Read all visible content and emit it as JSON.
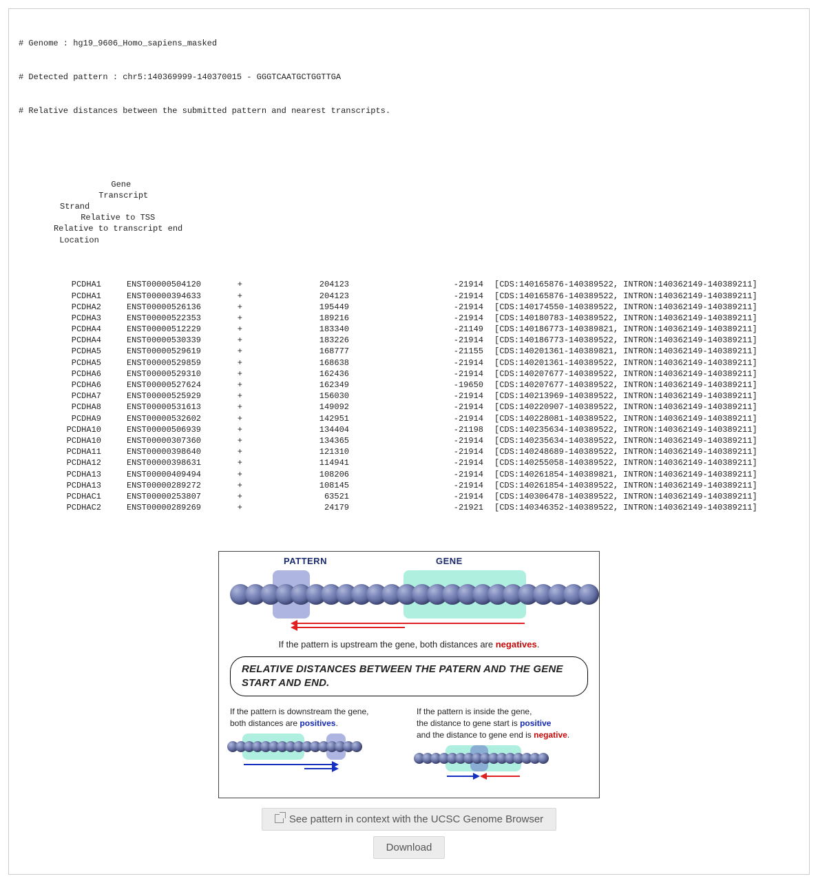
{
  "header": {
    "genome_line": "# Genome : hg19_9606_Homo_sapiens_masked",
    "pattern_line": "# Detected pattern : chr5:140369999-140370015 - GGGTCAATGCTGGTTGA",
    "distance_line": "# Relative distances between the submitted pattern and nearest transcripts."
  },
  "columns": {
    "gene": "Gene",
    "transcript": "Transcript",
    "strand": "Strand",
    "tss": "Relative to TSS",
    "end": "Relative to transcript end",
    "location": "Location"
  },
  "rows": [
    {
      "gene": "PCDHA1",
      "transcript": "ENST00000504120",
      "strand": "+",
      "tss": "204123",
      "end": "-21914",
      "location": "[CDS:140165876-140389522, INTRON:140362149-140389211]"
    },
    {
      "gene": "PCDHA1",
      "transcript": "ENST00000394633",
      "strand": "+",
      "tss": "204123",
      "end": "-21914",
      "location": "[CDS:140165876-140389522, INTRON:140362149-140389211]"
    },
    {
      "gene": "PCDHA2",
      "transcript": "ENST00000526136",
      "strand": "+",
      "tss": "195449",
      "end": "-21914",
      "location": "[CDS:140174550-140389522, INTRON:140362149-140389211]"
    },
    {
      "gene": "PCDHA3",
      "transcript": "ENST00000522353",
      "strand": "+",
      "tss": "189216",
      "end": "-21914",
      "location": "[CDS:140180783-140389522, INTRON:140362149-140389211]"
    },
    {
      "gene": "PCDHA4",
      "transcript": "ENST00000512229",
      "strand": "+",
      "tss": "183340",
      "end": "-21149",
      "location": "[CDS:140186773-140389821, INTRON:140362149-140389211]"
    },
    {
      "gene": "PCDHA4",
      "transcript": "ENST00000530339",
      "strand": "+",
      "tss": "183226",
      "end": "-21914",
      "location": "[CDS:140186773-140389522, INTRON:140362149-140389211]"
    },
    {
      "gene": "PCDHA5",
      "transcript": "ENST00000529619",
      "strand": "+",
      "tss": "168777",
      "end": "-21155",
      "location": "[CDS:140201361-140389821, INTRON:140362149-140389211]"
    },
    {
      "gene": "PCDHA5",
      "transcript": "ENST00000529859",
      "strand": "+",
      "tss": "168638",
      "end": "-21914",
      "location": "[CDS:140201361-140389522, INTRON:140362149-140389211]"
    },
    {
      "gene": "PCDHA6",
      "transcript": "ENST00000529310",
      "strand": "+",
      "tss": "162436",
      "end": "-21914",
      "location": "[CDS:140207677-140389522, INTRON:140362149-140389211]"
    },
    {
      "gene": "PCDHA6",
      "transcript": "ENST00000527624",
      "strand": "+",
      "tss": "162349",
      "end": "-19650",
      "location": "[CDS:140207677-140389522, INTRON:140362149-140389211]"
    },
    {
      "gene": "PCDHA7",
      "transcript": "ENST00000525929",
      "strand": "+",
      "tss": "156030",
      "end": "-21914",
      "location": "[CDS:140213969-140389522, INTRON:140362149-140389211]"
    },
    {
      "gene": "PCDHA8",
      "transcript": "ENST00000531613",
      "strand": "+",
      "tss": "149092",
      "end": "-21914",
      "location": "[CDS:140220907-140389522, INTRON:140362149-140389211]"
    },
    {
      "gene": "PCDHA9",
      "transcript": "ENST00000532602",
      "strand": "+",
      "tss": "142951",
      "end": "-21914",
      "location": "[CDS:140228081-140389522, INTRON:140362149-140389211]"
    },
    {
      "gene": "PCDHA10",
      "transcript": "ENST00000506939",
      "strand": "+",
      "tss": "134404",
      "end": "-21198",
      "location": "[CDS:140235634-140389522, INTRON:140362149-140389211]"
    },
    {
      "gene": "PCDHA10",
      "transcript": "ENST00000307360",
      "strand": "+",
      "tss": "134365",
      "end": "-21914",
      "location": "[CDS:140235634-140389522, INTRON:140362149-140389211]"
    },
    {
      "gene": "PCDHA11",
      "transcript": "ENST00000398640",
      "strand": "+",
      "tss": "121310",
      "end": "-21914",
      "location": "[CDS:140248689-140389522, INTRON:140362149-140389211]"
    },
    {
      "gene": "PCDHA12",
      "transcript": "ENST00000398631",
      "strand": "+",
      "tss": "114941",
      "end": "-21914",
      "location": "[CDS:140255058-140389522, INTRON:140362149-140389211]"
    },
    {
      "gene": "PCDHA13",
      "transcript": "ENST00000409494",
      "strand": "+",
      "tss": "108206",
      "end": "-21914",
      "location": "[CDS:140261854-140389821, INTRON:140362149-140389211]"
    },
    {
      "gene": "PCDHA13",
      "transcript": "ENST00000289272",
      "strand": "+",
      "tss": "108145",
      "end": "-21914",
      "location": "[CDS:140261854-140389522, INTRON:140362149-140389211]"
    },
    {
      "gene": "PCDHAC1",
      "transcript": "ENST00000253807",
      "strand": "+",
      "tss": "63521",
      "end": "-21914",
      "location": "[CDS:140306478-140389522, INTRON:140362149-140389211]"
    },
    {
      "gene": "PCDHAC2",
      "transcript": "ENST00000289269",
      "strand": "+",
      "tss": "24179",
      "end": "-21921",
      "location": "[CDS:140346352-140389522, INTRON:140362149-140389211]"
    }
  ],
  "diagram": {
    "label_pattern": "PATTERN",
    "label_gene": "GENE",
    "caption_upstream_pre": "If the pattern is upstream the gene, both distances are ",
    "caption_upstream_word": "negatives",
    "banner": "RELATIVE DISTANCES BETWEEN THE PATERN AND THE GENE START AND END.",
    "downstream_line1": "If the pattern is downstream the gene,",
    "downstream_line2_pre": "both distances are ",
    "downstream_line2_word": "positives",
    "inside_line1": "If the pattern is inside the gene,",
    "inside_line2_pre": "the distance to gene start is ",
    "inside_line2_word": "positive",
    "inside_line3_pre": "and the distance to gene end is ",
    "inside_line3_word": "negative",
    "colors": {
      "pattern_highlight": "#6b78c8",
      "gene_highlight": "#6ee2c5",
      "bead_light": "#aeb6d8",
      "bead_dark": "#2f3660",
      "arrow_red": "#e02020",
      "arrow_blue": "#1530c0",
      "neg_text": "#c40808",
      "pos_text": "#1428b4"
    }
  },
  "actions": {
    "ucsc": "See pattern in context with the UCSC Genome Browser",
    "download": "Download"
  }
}
